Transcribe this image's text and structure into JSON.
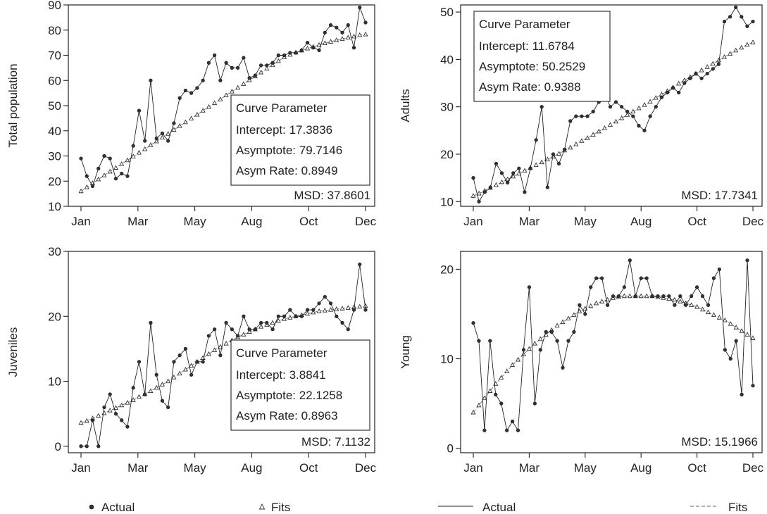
{
  "chart_data": [
    {
      "type": "line",
      "ylabel": "Total population",
      "x_ticks": [
        "Jan",
        "Mar",
        "May",
        "Aug",
        "Oct",
        "Dec"
      ],
      "y_ticks": [
        10,
        20,
        30,
        40,
        50,
        60,
        70,
        80,
        90
      ],
      "ylim": [
        10,
        90
      ],
      "series": [
        {
          "name": "Actual",
          "values": [
            29,
            22,
            18,
            25,
            30,
            29,
            21,
            23,
            22,
            34,
            48,
            36,
            60,
            37,
            39,
            36,
            43,
            53,
            56,
            55,
            57,
            60,
            67,
            70,
            60,
            67,
            65,
            65,
            69,
            61,
            62,
            66,
            66,
            67,
            70,
            70,
            71,
            71,
            72,
            75,
            73,
            72,
            79,
            82,
            81,
            79,
            82,
            73,
            89,
            83
          ]
        },
        {
          "name": "Fits",
          "values": [
            16.0,
            17.6,
            19.2,
            20.7,
            22.3,
            23.8,
            25.3,
            26.8,
            28.3,
            29.8,
            31.3,
            32.7,
            34.3,
            35.8,
            37.3,
            38.8,
            40.4,
            41.9,
            43.4,
            44.9,
            46.4,
            48.0,
            49.5,
            51.0,
            52.5,
            54.1,
            55.6,
            57.1,
            58.6,
            60.1,
            61.6,
            63.2,
            64.7,
            66.2,
            67.7,
            69.2,
            70.2,
            71.1,
            71.9,
            72.7,
            73.4,
            74.1,
            74.8,
            75.4,
            76.0,
            76.5,
            77.0,
            77.5,
            78.0,
            78.3
          ]
        }
      ],
      "params": {
        "title": "Curve Parameter",
        "lines": [
          "Intercept: 17.3836",
          "Asymptote: 79.7146",
          "Asym Rate: 0.8949"
        ]
      },
      "msd": "MSD: 37.8601"
    },
    {
      "type": "line",
      "ylabel": "Adults",
      "x_ticks": [
        "Jan",
        "Mar",
        "May",
        "Aug",
        "Oct",
        "Dec"
      ],
      "y_ticks": [
        10,
        20,
        30,
        40,
        50
      ],
      "ylim": [
        9,
        51.5
      ],
      "series": [
        {
          "name": "Actual",
          "values": [
            15,
            10,
            12,
            13,
            18,
            16,
            14,
            16,
            17,
            12,
            17,
            23,
            30,
            13,
            20,
            18,
            21,
            27,
            28,
            28,
            28,
            29,
            31,
            33,
            30,
            31,
            30,
            29,
            28,
            26,
            25,
            28,
            30,
            32,
            33,
            34,
            33,
            35,
            36,
            37,
            36,
            37,
            38,
            39,
            48,
            49,
            51,
            49,
            47,
            48
          ]
        },
        {
          "name": "Fits",
          "values": [
            11.2,
            11.7,
            12.3,
            12.9,
            13.5,
            14.1,
            14.7,
            15.3,
            15.9,
            16.5,
            17.1,
            17.7,
            18.3,
            18.9,
            19.5,
            20.1,
            20.8,
            21.4,
            22.1,
            22.8,
            23.4,
            24.1,
            24.8,
            25.5,
            26.2,
            26.9,
            27.6,
            28.3,
            29.0,
            29.7,
            30.4,
            31.1,
            31.9,
            32.6,
            33.3,
            34.1,
            34.9,
            35.6,
            36.3,
            37.0,
            37.7,
            38.4,
            39.1,
            39.8,
            40.5,
            41.2,
            41.9,
            42.5,
            43.1,
            43.6
          ]
        }
      ],
      "params": {
        "title": "Curve Parameter",
        "lines": [
          "Intercept: 11.6784",
          "Asymptote: 50.2529",
          "Asym Rate: 0.9388"
        ]
      },
      "msd": "MSD: 17.7341"
    },
    {
      "type": "line",
      "ylabel": "Juveniles",
      "x_ticks": [
        "Jan",
        "Mar",
        "May",
        "Aug",
        "Oct",
        "Dec"
      ],
      "y_ticks": [
        0,
        10,
        20,
        30
      ],
      "ylim": [
        -1,
        30
      ],
      "series": [
        {
          "name": "Actual",
          "values": [
            0,
            0,
            4,
            0,
            6,
            8,
            5,
            4,
            3,
            9,
            13,
            8,
            19,
            11,
            7,
            6,
            13,
            14,
            15,
            11,
            13,
            13,
            17,
            18,
            14,
            19,
            18,
            17,
            20,
            18,
            18,
            19,
            19,
            18,
            20,
            20,
            21,
            20,
            20,
            21,
            21,
            22,
            23,
            22,
            20,
            19,
            18,
            21,
            28,
            21
          ]
        },
        {
          "name": "Fits",
          "values": [
            3.6,
            3.9,
            4.3,
            4.7,
            5.1,
            5.5,
            5.9,
            6.3,
            6.7,
            7.1,
            7.6,
            8.0,
            8.5,
            9.0,
            9.5,
            10.0,
            10.6,
            11.2,
            11.8,
            12.4,
            13.0,
            13.6,
            14.2,
            14.8,
            15.3,
            15.8,
            16.3,
            16.8,
            17.2,
            17.6,
            18.0,
            18.4,
            18.7,
            19.0,
            19.3,
            19.6,
            19.8,
            20.0,
            20.2,
            20.4,
            20.6,
            20.8,
            20.9,
            21.0,
            21.1,
            21.2,
            21.3,
            21.4,
            21.5,
            21.6
          ]
        }
      ],
      "params": {
        "title": "Curve Parameter",
        "lines": [
          "Intercept: 3.8841",
          "Asymptote: 22.1258",
          "Asym Rate: 0.8963"
        ]
      },
      "msd": "MSD: 7.1132"
    },
    {
      "type": "line",
      "ylabel": "Young",
      "x_ticks": [
        "Jan",
        "Mar",
        "May",
        "Aug",
        "Oct",
        "Dec"
      ],
      "y_ticks": [
        0,
        10,
        20
      ],
      "ylim": [
        -0.5,
        22
      ],
      "series": [
        {
          "name": "Actual",
          "values": [
            14,
            12,
            2,
            12,
            6,
            5,
            2,
            3,
            2,
            11,
            18,
            5,
            11,
            13,
            13,
            12,
            9,
            12,
            13,
            16,
            15,
            18,
            19,
            19,
            16,
            17,
            17,
            18,
            21,
            17,
            19,
            19,
            17,
            17,
            17,
            17,
            16,
            17,
            16,
            17,
            18,
            17,
            16,
            19,
            20,
            11,
            10,
            12,
            6,
            21,
            7
          ]
        },
        {
          "name": "Fits",
          "values": [
            4.0,
            4.8,
            5.6,
            6.4,
            7.2,
            7.9,
            8.6,
            9.3,
            9.9,
            10.5,
            11.1,
            11.7,
            12.2,
            12.7,
            13.2,
            13.7,
            14.1,
            14.5,
            14.9,
            15.3,
            15.6,
            15.9,
            16.2,
            16.4,
            16.6,
            16.8,
            16.9,
            17.0,
            17.0,
            17.0,
            17.0,
            17.0,
            17.0,
            16.9,
            16.8,
            16.7,
            16.6,
            16.4,
            16.2,
            16.0,
            15.8,
            15.5,
            15.2,
            14.9,
            14.6,
            14.3,
            13.9,
            13.5,
            13.1,
            12.7,
            12.3
          ]
        }
      ],
      "msd": "MSD: 15.1966"
    }
  ],
  "legend_left": {
    "actual": "Actual",
    "fits": "Fits"
  },
  "legend_right": {
    "actual": "Actual",
    "fits": "Fits"
  }
}
